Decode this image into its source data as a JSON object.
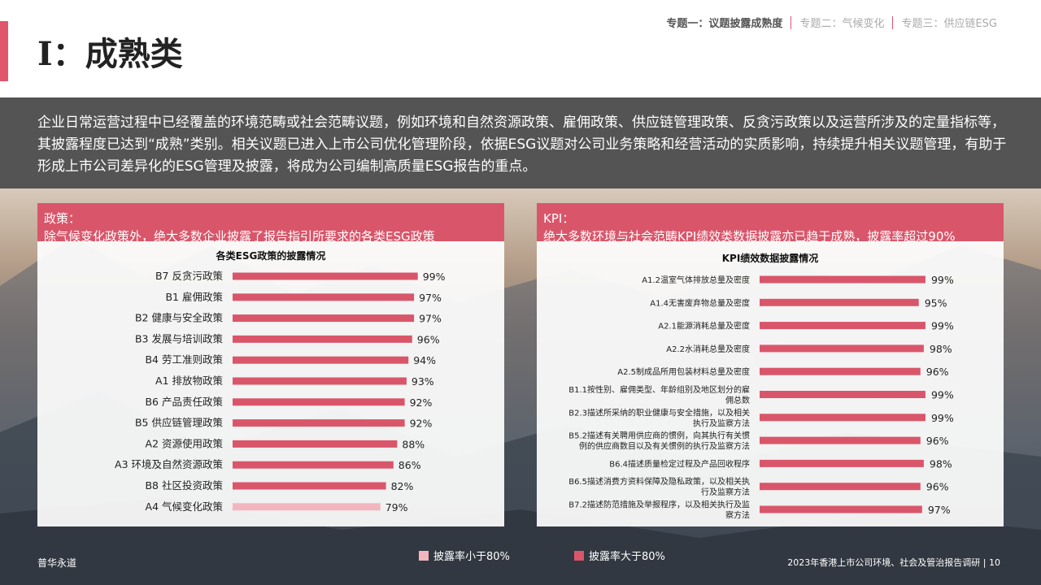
{
  "header": {
    "title": "I：成熟类",
    "nav": [
      "专题一：议题披露成熟度",
      "专题二：气候变化",
      "专题三：供应链ESG"
    ]
  },
  "intro": "企业日常运营过程中已经覆盖的环境范畴或社会范畴议题，例如环境和自然资源政策、雇佣政策、供应链管理政策、反贪污政策以及运营所涉及的定量指标等，其披露程度已达到“成熟”类别。相关议题已进入上市公司优化管理阶段，依据ESG议题对公司业务策略和经营活动的实质影响，持续提升相关议题管理，有助于形成上市公司差异化的ESG管理及披露，将成为公司编制高质量ESG报告的重点。",
  "left_panel": {
    "label": "政策：",
    "subtitle": "除气候变化政策外，绝大多数企业披露了报告指引所要求的各类ESG政策"
  },
  "right_panel": {
    "label": "KPI：",
    "subtitle": "绝大多数环境与社会范畴KPI绩效类数据披露亦已趋于成熟，披露率超过90%"
  },
  "legend": {
    "low": "披露率小于80%",
    "high": "披露率大于80%"
  },
  "footer": {
    "left": "普华永道",
    "right": "2023年香港上市公司环境、社会及管治报告调研 | 10"
  },
  "colors": {
    "accent": "#d9566a",
    "high": "#d9566a",
    "low": "#f2b6bf"
  },
  "chart_data": [
    {
      "type": "bar",
      "orientation": "horizontal",
      "title": "各类ESG政策的披露情况",
      "categories": [
        "B7 反贪污政策",
        "B1 雇佣政策",
        "B2 健康与安全政策",
        "B3 发展与培训政策",
        "B4 劳工准则政策",
        "A1 排放物政策",
        "B6 产品责任政策",
        "B5 供应链管理政策",
        "A2 资源使用政策",
        "A3 环境及自然资源政策",
        "B8 社区投资政策",
        "A4 气候变化政策"
      ],
      "values": [
        99,
        97,
        97,
        96,
        94,
        93,
        92,
        92,
        88,
        86,
        82,
        79
      ],
      "labels": [
        "99%",
        "97%",
        "97%",
        "96%",
        "94%",
        "93%",
        "92%",
        "92%",
        "88%",
        "86%",
        "82%",
        "79%"
      ],
      "xlim": [
        0,
        100
      ]
    },
    {
      "type": "bar",
      "orientation": "horizontal",
      "title": "KPI绩效数据披露情况",
      "categories": [
        "A1.2温室气体排放总量及密度",
        "A1.4无害废弃物总量及密度",
        "A2.1能源消耗总量及密度",
        "A2.2水消耗总量及密度",
        "A2.5制成品所用包装材料总量及密度",
        "B1.1按性别、雇佣类型、年龄组别及地区划分的雇佣总数",
        "B2.3描述所采纳的职业健康与安全措施，以及相关执行及监察方法",
        "B5.2描述有关聘用供应商的惯例，向其执行有关惯例的供应商数目以及有关惯例的执行及监察方法",
        "B6.4描述质量检定过程及产品回收程序",
        "B6.5描述消费方资料保障及隐私政策，以及相关执行及监察方法",
        "B7.2描述防范措施及举报程序，以及相关执行及监察方法"
      ],
      "category_lines": [
        [
          "A1.2温室气体排放总量及密度"
        ],
        [
          "A1.4无害废弃物总量及密度"
        ],
        [
          "A2.1能源消耗总量及密度"
        ],
        [
          "A2.2水消耗总量及密度"
        ],
        [
          "A2.5制成品所用包装材料总量及密度"
        ],
        [
          "B1.1按性别、雇佣类型、年龄组别及地区划分的雇",
          "佣总数"
        ],
        [
          "B2.3描述所采纳的职业健康与安全措施，以及相关",
          "执行及监察方法"
        ],
        [
          "B5.2描述有关聘用供应商的惯例，向其执行有关惯",
          "例的供应商数目以及有关惯例的执行及监察方法"
        ],
        [
          "B6.4描述质量检定过程及产品回收程序"
        ],
        [
          "B6.5描述消费方资料保障及隐私政策，以及相关执",
          "行及监察方法"
        ],
        [
          "B7.2描述防范措施及举报程序，以及相关执行及监",
          "察方法"
        ]
      ],
      "values": [
        99,
        95,
        99,
        98,
        96,
        99,
        99,
        96,
        98,
        96,
        97
      ],
      "labels": [
        "99%",
        "95%",
        "99%",
        "98%",
        "96%",
        "99%",
        "99%",
        "96%",
        "98%",
        "96%",
        "97%"
      ],
      "xlim": [
        0,
        100
      ]
    }
  ]
}
